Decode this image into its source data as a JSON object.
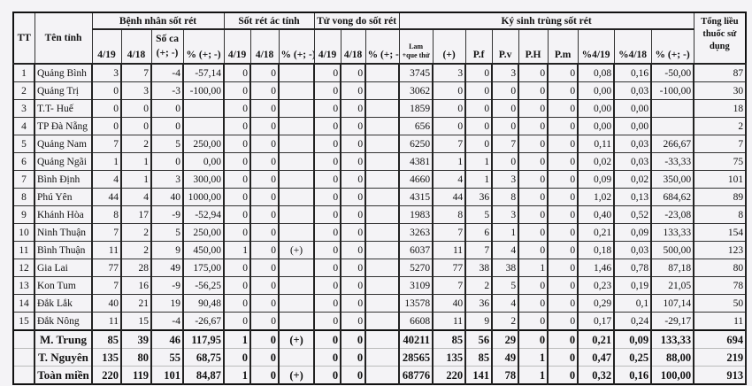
{
  "headers": {
    "tt": "TT",
    "name": "Tên tỉnh",
    "benh_nhan": "Bệnh nhân sốt rét",
    "sot_ret_ac_tinh": "Sốt rét ác tính",
    "tu_vong": "Tử vong do sốt rét",
    "ky_sinh_trung": "Ký sinh trùng sốt rét",
    "tong_lieu": "Tổng liều thuốc sử dụng",
    "bn_cols": [
      "4/19",
      "4/18",
      "Số ca (+; -)",
      "% (+; -)"
    ],
    "srat_cols": [
      "4/19",
      "4/18",
      "% (+; -)"
    ],
    "tv_cols": [
      "4/19",
      "4/18",
      "% (+; -)"
    ],
    "kst_cols": [
      "Lam +que thử",
      "(+)",
      "P.f",
      "P.v",
      "P.H",
      "P.m",
      "%4/19",
      "%4/18",
      "% (+; -)"
    ]
  },
  "rows": [
    [
      "1",
      "Quảng Bình",
      "3",
      "7",
      "-4",
      "-57,14",
      "0",
      "0",
      "",
      "0",
      "0",
      "",
      "3745",
      "3",
      "0",
      "3",
      "0",
      "0",
      "0,08",
      "0,16",
      "-50,00",
      "87"
    ],
    [
      "2",
      "Quảng Trị",
      "0",
      "3",
      "-3",
      "-100,00",
      "0",
      "0",
      "",
      "0",
      "0",
      "",
      "3062",
      "0",
      "0",
      "0",
      "0",
      "0",
      "0,00",
      "0,03",
      "-100,00",
      "30"
    ],
    [
      "3",
      "T.T- Huế",
      "0",
      "0",
      "0",
      "",
      "0",
      "0",
      "",
      "0",
      "0",
      "",
      "1859",
      "0",
      "0",
      "0",
      "0",
      "0",
      "0,00",
      "0,00",
      "",
      "18"
    ],
    [
      "4",
      "TP Đà Nẵng",
      "0",
      "0",
      "0",
      "",
      "0",
      "0",
      "",
      "0",
      "0",
      "",
      "656",
      "0",
      "0",
      "0",
      "0",
      "0",
      "0,00",
      "0,00",
      "",
      "2"
    ],
    [
      "5",
      "Quảng Nam",
      "7",
      "2",
      "5",
      "250,00",
      "0",
      "0",
      "",
      "0",
      "0",
      "",
      "6250",
      "7",
      "0",
      "7",
      "0",
      "0",
      "0,11",
      "0,03",
      "266,67",
      "7"
    ],
    [
      "6",
      "Quảng Ngãi",
      "1",
      "1",
      "0",
      "0,00",
      "0",
      "0",
      "",
      "0",
      "0",
      "",
      "4381",
      "1",
      "1",
      "0",
      "0",
      "0",
      "0,02",
      "0,03",
      "-33,33",
      "75"
    ],
    [
      "7",
      "Bình Định",
      "4",
      "1",
      "3",
      "300,00",
      "0",
      "0",
      "",
      "0",
      "0",
      "",
      "4660",
      "4",
      "1",
      "3",
      "0",
      "0",
      "0,09",
      "0,02",
      "350,00",
      "101"
    ],
    [
      "8",
      "Phú Yên",
      "44",
      "4",
      "40",
      "1000,00",
      "0",
      "0",
      "",
      "0",
      "0",
      "",
      "4315",
      "44",
      "36",
      "8",
      "0",
      "0",
      "1,02",
      "0,13",
      "684,62",
      "89"
    ],
    [
      "9",
      "Khánh Hòa",
      "8",
      "17",
      "-9",
      "-52,94",
      "0",
      "0",
      "",
      "0",
      "0",
      "",
      "1983",
      "8",
      "5",
      "3",
      "0",
      "0",
      "0,40",
      "0,52",
      "-23,08",
      "8"
    ],
    [
      "10",
      "Ninh Thuận",
      "7",
      "2",
      "5",
      "250,00",
      "0",
      "0",
      "",
      "0",
      "0",
      "",
      "3263",
      "7",
      "6",
      "1",
      "0",
      "0",
      "0,21",
      "0,09",
      "133,33",
      "154"
    ],
    [
      "11",
      "Bình Thuận",
      "11",
      "2",
      "9",
      "450,00",
      "1",
      "0",
      "(+)",
      "0",
      "0",
      "",
      "6037",
      "11",
      "7",
      "4",
      "0",
      "0",
      "0,18",
      "0,03",
      "500,00",
      "123"
    ],
    [
      "12",
      "Gia Lai",
      "77",
      "28",
      "49",
      "175,00",
      "0",
      "0",
      "",
      "0",
      "0",
      "",
      "5270",
      "77",
      "38",
      "38",
      "1",
      "0",
      "1,46",
      "0,78",
      "87,18",
      "80"
    ],
    [
      "13",
      "Kon Tum",
      "7",
      "16",
      "-9",
      "-56,25",
      "0",
      "0",
      "",
      "0",
      "0",
      "",
      "3109",
      "7",
      "2",
      "5",
      "0",
      "0",
      "0,23",
      "0,19",
      "21,05",
      "78"
    ],
    [
      "14",
      "Đắk Lắk",
      "40",
      "21",
      "19",
      "90,48",
      "0",
      "0",
      "",
      "0",
      "0",
      "",
      "13578",
      "40",
      "36",
      "4",
      "0",
      "0",
      "0,29",
      "0,1",
      "107,14",
      "50"
    ],
    [
      "15",
      "Đắk Nông",
      "11",
      "15",
      "-4",
      "-26,67",
      "0",
      "0",
      "",
      "0",
      "0",
      "",
      "6608",
      "11",
      "9",
      "2",
      "0",
      "0",
      "0,17",
      "0,24",
      "-29,17",
      "11"
    ]
  ],
  "totals": [
    [
      "",
      "M. Trung",
      "85",
      "39",
      "46",
      "117,95",
      "1",
      "0",
      "(+)",
      "0",
      "0",
      "",
      "40211",
      "85",
      "56",
      "29",
      "0",
      "0",
      "0,21",
      "0,09",
      "133,33",
      "694"
    ],
    [
      "",
      "T. Nguyên",
      "135",
      "80",
      "55",
      "68,75",
      "0",
      "0",
      "",
      "0",
      "0",
      "",
      "28565",
      "135",
      "85",
      "49",
      "1",
      "0",
      "0,47",
      "0,25",
      "88,00",
      "219"
    ],
    [
      "",
      "Toàn miền",
      "220",
      "119",
      "101",
      "84,87",
      "1",
      "0",
      "(+)",
      "0",
      "0",
      "",
      "68776",
      "220",
      "141",
      "78",
      "1",
      "0",
      "0,32",
      "0,16",
      "100,00",
      "913"
    ]
  ]
}
